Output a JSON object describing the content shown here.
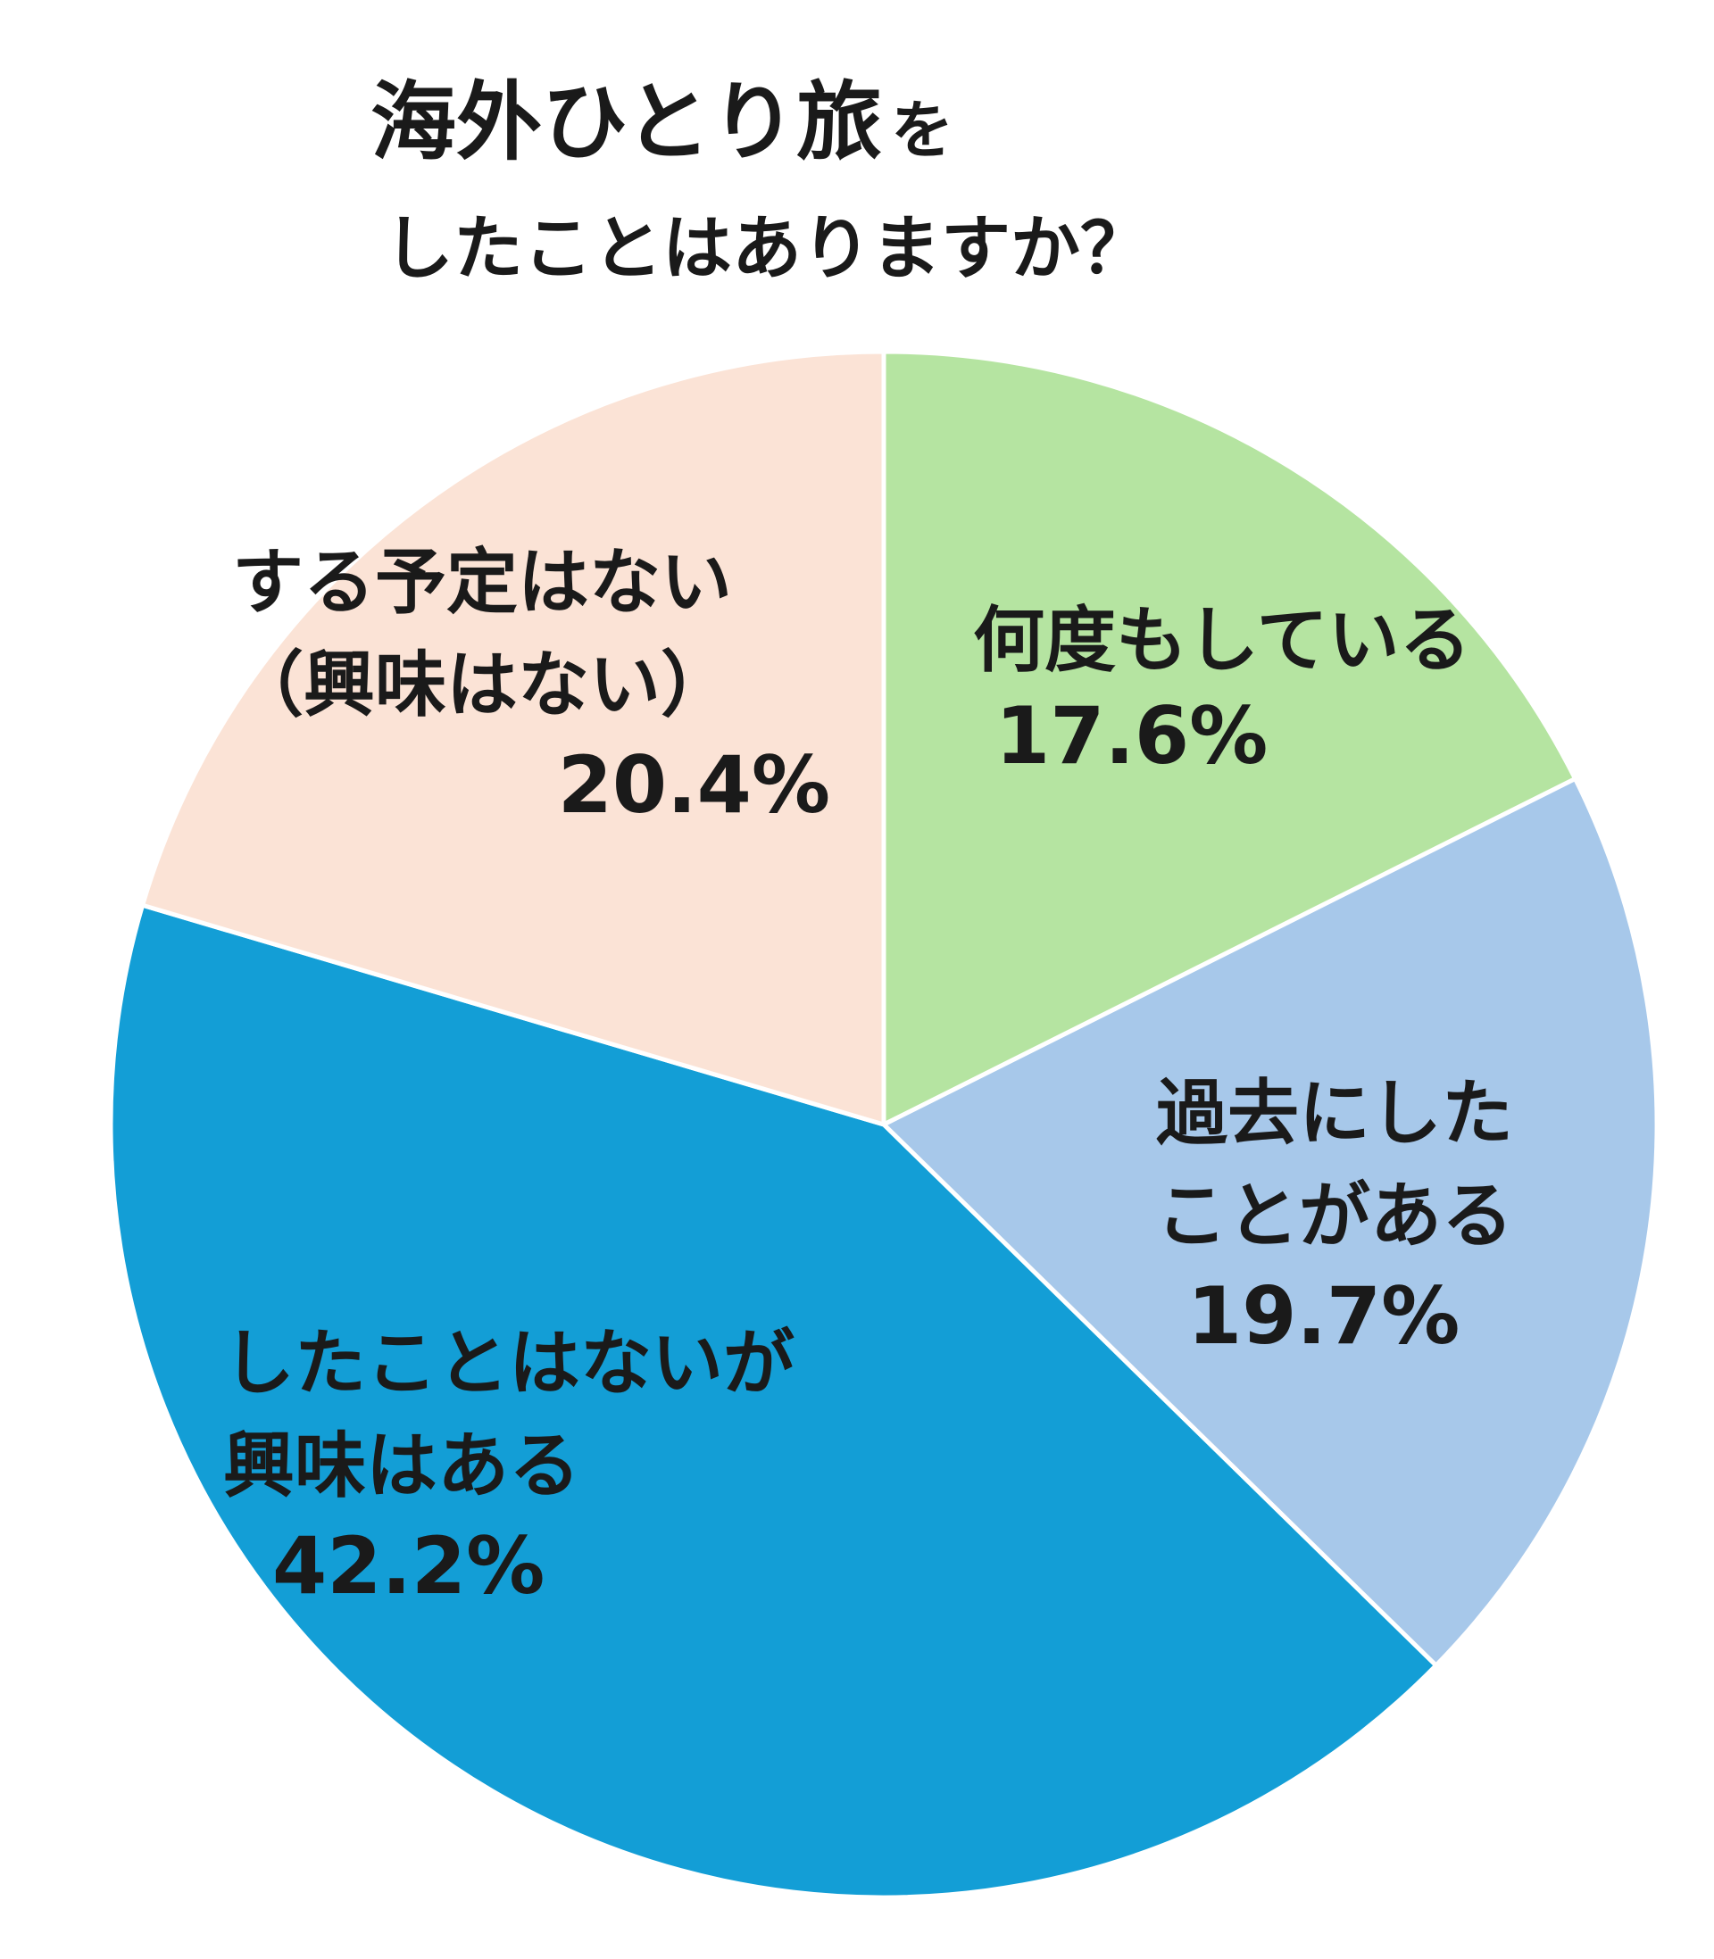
{
  "chart_data": {
    "type": "pie",
    "title": {
      "main": "海外ひとり旅",
      "main_suffix": "を",
      "line2": "したことはありますか？"
    },
    "slices": [
      {
        "label_lines": [
          "何度もしている"
        ],
        "value_text": "17.6%",
        "value": 17.6,
        "color": "#b5e4a1"
      },
      {
        "label_lines": [
          "過去にした",
          "ことがある"
        ],
        "value_text": "19.7%",
        "value": 19.7,
        "color": "#a7c8ea"
      },
      {
        "label_lines": [
          "したことはないが",
          "興味はある"
        ],
        "value_text": "42.2%",
        "value": 42.2,
        "color": "#139ed6"
      },
      {
        "label_lines": [
          "する予定はない",
          "（興味はない）"
        ],
        "value_text": "20.4%",
        "value": 20.4,
        "color": "#fbe3d6"
      }
    ],
    "start": "12 o'clock",
    "direction": "clockwise",
    "legend": "none"
  }
}
